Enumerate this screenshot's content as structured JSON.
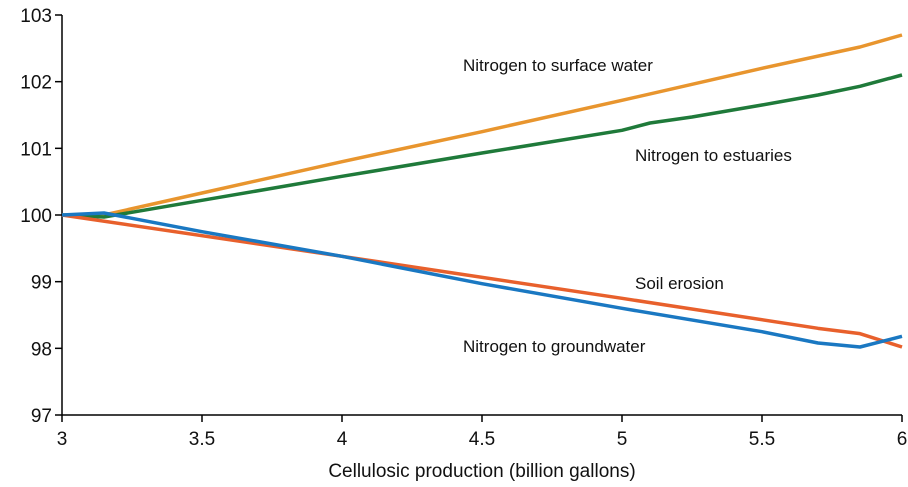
{
  "chart_data": {
    "type": "line",
    "x_label": "Cellulosic production (billion gallons)",
    "xlim": [
      3,
      6
    ],
    "xticks": [
      3,
      3.5,
      4,
      4.5,
      5,
      5.5,
      6
    ],
    "ylim": [
      97,
      103
    ],
    "yticks": [
      97,
      98,
      99,
      100,
      101,
      102,
      103
    ],
    "grid": false,
    "series": [
      {
        "name": "Nitrogen to surface water",
        "color": "#e8952e",
        "x": [
          3,
          3.15,
          3.5,
          4,
          4.5,
          5,
          5.5,
          5.85,
          6
        ],
        "values": [
          100,
          100,
          100.33,
          100.8,
          101.25,
          101.72,
          102.2,
          102.52,
          102.7
        ]
      },
      {
        "name": "Nitrogen to estuaries",
        "color": "#1f7a3a",
        "x": [
          3,
          3.15,
          3.5,
          4,
          4.5,
          5,
          5.1,
          5.25,
          5.5,
          5.7,
          5.85,
          6
        ],
        "values": [
          100,
          99.97,
          100.22,
          100.58,
          100.93,
          101.27,
          101.38,
          101.47,
          101.65,
          101.8,
          101.93,
          102.1
        ]
      },
      {
        "name": "Soil erosion",
        "color": "#e8602c",
        "x": [
          3,
          4,
          5,
          5.7,
          5.85,
          6
        ],
        "values": [
          100,
          99.38,
          98.75,
          98.3,
          98.22,
          98.02
        ]
      },
      {
        "name": "Nitrogen to groundwater",
        "color": "#1a78c2",
        "x": [
          3,
          3.15,
          3.5,
          4,
          4.5,
          5,
          5.5,
          5.7,
          5.85,
          6
        ],
        "values": [
          100,
          100.03,
          99.75,
          99.38,
          98.97,
          98.6,
          98.25,
          98.08,
          98.02,
          98.18
        ]
      }
    ]
  }
}
